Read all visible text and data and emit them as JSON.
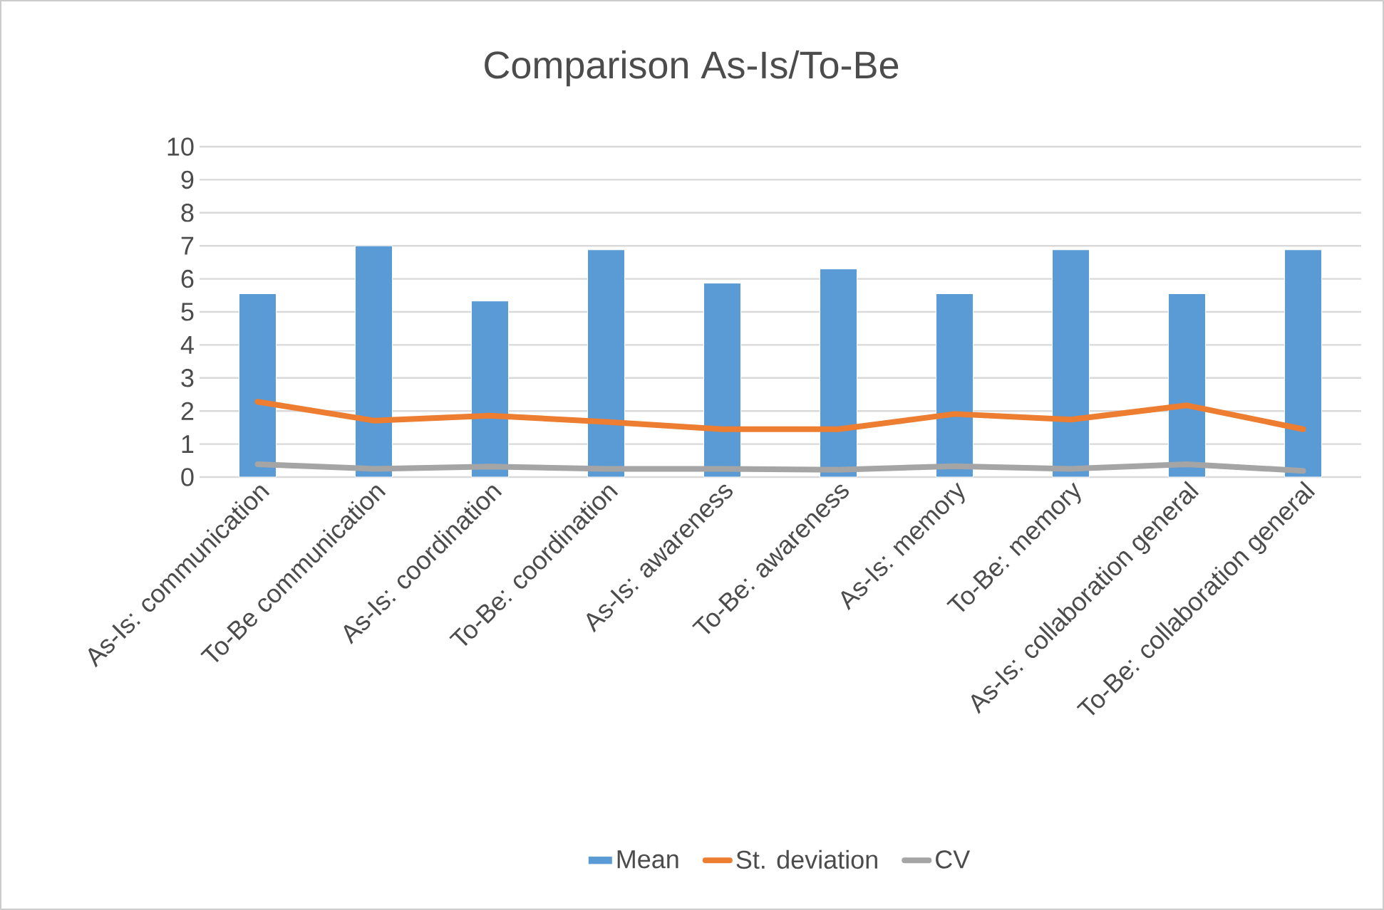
{
  "chart_data": {
    "type": "bar",
    "title": "Comparison As-Is/To-Be",
    "categories": [
      "As-Is: communication",
      "To-Be communication",
      "As-Is: coordination",
      "To-Be: coordination",
      "As-Is: awareness",
      "To-Be: awareness",
      "As-Is: memory",
      "To-Be: memory",
      "As-Is: collaboration general",
      "To-Be: collaboration general"
    ],
    "series": [
      {
        "name": "Mean",
        "color": "#5b9bd5",
        "values": [
          5.55,
          7.0,
          5.33,
          6.88,
          5.87,
          6.3,
          5.55,
          6.88,
          5.55,
          6.88
        ]
      },
      {
        "name": "St. deviation",
        "type": "line",
        "color": "#ed7d31",
        "values": [
          2.28,
          1.71,
          1.86,
          1.67,
          1.45,
          1.45,
          1.91,
          1.74,
          2.17,
          1.45
        ]
      },
      {
        "name": "CV",
        "type": "line",
        "color": "#a5a5a5",
        "values": [
          0.39,
          0.25,
          0.32,
          0.25,
          0.25,
          0.22,
          0.33,
          0.25,
          0.39,
          0.19
        ]
      }
    ],
    "ylim": [
      0,
      10
    ],
    "yticks": [
      0,
      1,
      2,
      3,
      4,
      5,
      6,
      7,
      8,
      9,
      10
    ],
    "grid": "y",
    "legend": "bottom"
  }
}
